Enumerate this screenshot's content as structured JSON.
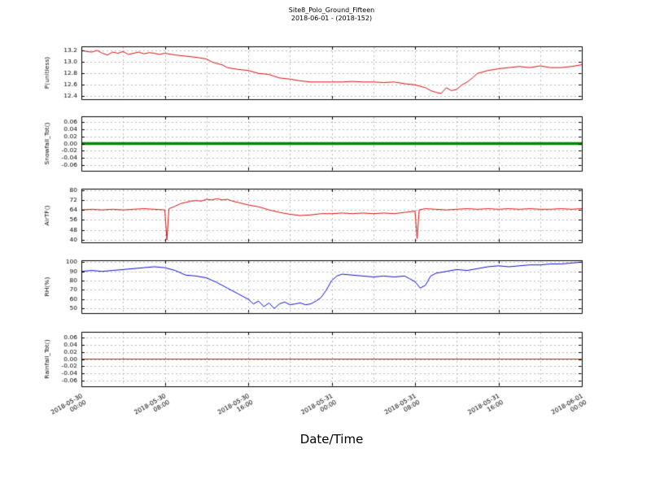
{
  "header": {
    "title": "Site8_Polo_Ground_Fifteen",
    "subtitle": "2018-06-01 - (2018-152)"
  },
  "chart_data": {
    "type": "line",
    "title": "Site8_Polo_Ground_Fifteen",
    "subtitle": "2018-06-01 - (2018-152)",
    "xlabel": "Date/Time",
    "grid": true,
    "xlim": [
      0,
      48
    ],
    "xticks": [
      0,
      8,
      16,
      24,
      32,
      40,
      48
    ],
    "x_minor_step_hours": 4,
    "xtick_labels": [
      [
        "2018-05-30",
        "00:00"
      ],
      [
        "2018-05-30",
        "08:00"
      ],
      [
        "2018-05-30",
        "16:00"
      ],
      [
        "2018-05-31",
        "00:00"
      ],
      [
        "2018-05-31",
        "08:00"
      ],
      [
        "2018-05-31",
        "16:00"
      ],
      [
        "2018-06-01",
        "00:00"
      ]
    ],
    "panels": [
      {
        "ylabel": "P(unitless)",
        "color": "#dd1111",
        "line_width": 1,
        "ylim": [
          12.35,
          13.27
        ],
        "yticks": [
          12.4,
          12.6,
          12.8,
          13.0,
          13.2
        ],
        "ytick_labels": [
          "12.4",
          "12.6",
          "12.8",
          "13.0",
          "13.2"
        ],
        "x": [
          0,
          0.5,
          1,
          1.5,
          2,
          2.5,
          3,
          3.5,
          4,
          4.5,
          5,
          5.5,
          6,
          6.5,
          7,
          7.5,
          8,
          9,
          10,
          11,
          12,
          12.5,
          13,
          13.5,
          14,
          15,
          16,
          17,
          18,
          19,
          20,
          21,
          22,
          23,
          24,
          25,
          26,
          27,
          28,
          29,
          30,
          31,
          32,
          33,
          33.5,
          34,
          34.5,
          35,
          35.5,
          36,
          36.5,
          37,
          37.5,
          38,
          39,
          40,
          41,
          42,
          43,
          44,
          45,
          46,
          47,
          48
        ],
        "y": [
          13.2,
          13.18,
          13.17,
          13.2,
          13.15,
          13.12,
          13.17,
          13.15,
          13.18,
          13.13,
          13.15,
          13.17,
          13.14,
          13.16,
          13.15,
          13.13,
          13.15,
          13.12,
          13.1,
          13.08,
          13.05,
          13.0,
          12.97,
          12.95,
          12.9,
          12.87,
          12.85,
          12.8,
          12.78,
          12.72,
          12.7,
          12.67,
          12.65,
          12.65,
          12.65,
          12.65,
          12.66,
          12.65,
          12.65,
          12.64,
          12.65,
          12.62,
          12.6,
          12.55,
          12.5,
          12.47,
          12.45,
          12.55,
          12.5,
          12.52,
          12.6,
          12.65,
          12.72,
          12.8,
          12.85,
          12.88,
          12.9,
          12.92,
          12.9,
          12.93,
          12.9,
          12.9,
          12.92,
          12.95
        ]
      },
      {
        "ylabel": "Snowfall_Tot()",
        "color": "#008800",
        "line_width": 3.5,
        "ylim": [
          -0.075,
          0.075
        ],
        "yticks": [
          -0.06,
          -0.04,
          -0.02,
          0.0,
          0.02,
          0.04,
          0.06
        ],
        "ytick_labels": [
          "-0.06",
          "-0.04",
          "-0.02",
          "0.00",
          "0.02",
          "0.04",
          "0.06"
        ],
        "x": [
          0,
          48
        ],
        "y": [
          0,
          0
        ]
      },
      {
        "ylabel": "AirTF()",
        "color": "#dd1111",
        "line_width": 1,
        "ylim": [
          38,
          81
        ],
        "yticks": [
          40,
          48,
          56,
          64,
          72,
          80
        ],
        "ytick_labels": [
          "40",
          "48",
          "56",
          "64",
          "72",
          "80"
        ],
        "x": [
          0,
          1,
          2,
          3,
          4,
          5,
          6,
          7,
          8,
          8.2,
          8.4,
          9,
          9.5,
          10,
          10.5,
          11,
          11.5,
          12,
          12.5,
          13,
          13.5,
          14,
          14.5,
          15,
          16,
          17,
          18,
          19,
          20,
          21,
          22,
          23,
          24,
          25,
          26,
          27,
          28,
          29,
          30,
          31,
          32,
          32.2,
          32.4,
          33,
          34,
          35,
          36,
          37,
          38,
          39,
          40,
          41,
          42,
          43,
          44,
          45,
          46,
          47,
          48
        ],
        "y": [
          64,
          64.5,
          64,
          64.5,
          64,
          64.5,
          65,
          64.5,
          64,
          40,
          65,
          67,
          69,
          70,
          71,
          71.5,
          71,
          72.5,
          72,
          73,
          72,
          72.5,
          71,
          70,
          68,
          66.5,
          64,
          62,
          60.5,
          59.5,
          60,
          61,
          61,
          61.5,
          61,
          61.5,
          61,
          61.5,
          61,
          62,
          63,
          41,
          64,
          65,
          64.5,
          64,
          64.5,
          65,
          64.5,
          65,
          64.5,
          65,
          64.5,
          65,
          64.5,
          64.5,
          65,
          64.5,
          65
        ]
      },
      {
        "ylabel": "RH(%)",
        "color": "#1111dd",
        "line_width": 1,
        "ylim": [
          45,
          102
        ],
        "yticks": [
          50,
          60,
          70,
          80,
          90,
          100
        ],
        "ytick_labels": [
          "50",
          "60",
          "70",
          "80",
          "90",
          "100"
        ],
        "x": [
          0,
          1,
          2,
          3,
          4,
          5,
          6,
          7,
          8,
          9,
          10,
          11,
          12,
          13,
          14,
          15,
          16,
          16.5,
          17,
          17.5,
          18,
          18.5,
          19,
          19.5,
          20,
          20.5,
          21,
          21.5,
          22,
          22.5,
          23,
          23.5,
          24,
          24.5,
          25,
          26,
          27,
          28,
          29,
          30,
          31,
          31.5,
          32,
          32.5,
          33,
          33.5,
          34,
          35,
          36,
          37,
          38,
          39,
          40,
          41,
          42,
          43,
          44,
          45,
          46,
          47,
          48
        ],
        "y": [
          90,
          91,
          90,
          91,
          92,
          93,
          94,
          95,
          94,
          91,
          86,
          85,
          83,
          78,
          72,
          66,
          60,
          55,
          58,
          52,
          56,
          50,
          55,
          57,
          54,
          55,
          56,
          54,
          55,
          58,
          62,
          70,
          80,
          85,
          87,
          86,
          85,
          84,
          85,
          84,
          85,
          82,
          79,
          72,
          75,
          85,
          88,
          90,
          92,
          91,
          93,
          95,
          96,
          95,
          96,
          97,
          97,
          98,
          98,
          99,
          100
        ]
      },
      {
        "ylabel": "Rainfall_Tot()",
        "color": "#dd1111",
        "line_width": 1,
        "ylim": [
          -0.075,
          0.075
        ],
        "yticks": [
          -0.06,
          -0.04,
          -0.02,
          0.0,
          0.02,
          0.04,
          0.06
        ],
        "ytick_labels": [
          "-0.06",
          "-0.04",
          "-0.02",
          "0.00",
          "0.02",
          "0.04",
          "0.06"
        ],
        "x": [
          0,
          48
        ],
        "y": [
          0,
          0
        ]
      }
    ]
  }
}
